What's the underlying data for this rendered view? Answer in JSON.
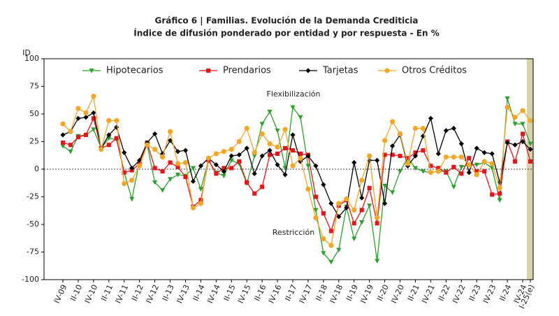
{
  "chart_data": {
    "type": "line",
    "title": "Gráfico 6 | Familias. Evolución de la Demanda Crediticia",
    "subtitle": "Índice de difusión ponderado por entidad y por respuesta - En %",
    "y_label": "ID",
    "annotations": [
      "Flexibilización",
      "Restricción"
    ],
    "categories": [
      "IV-09",
      null,
      "II-10",
      null,
      "IV-10",
      null,
      "II-11",
      null,
      "IV-11",
      null,
      "II-12",
      null,
      "IV-12",
      null,
      "II-13",
      null,
      "IV-13",
      null,
      "II-14",
      null,
      "IV-14",
      null,
      "II-15",
      null,
      "IV-15",
      null,
      "II-16",
      null,
      "IV-16",
      null,
      "II-17",
      null,
      "IV-17",
      null,
      "II-18",
      null,
      "IV-18",
      null,
      "II-19",
      null,
      "IV-19",
      null,
      "II-20",
      null,
      "IV-20",
      null,
      "II-21",
      null,
      "IV-21",
      null,
      "II-22",
      null,
      "IV-22",
      null,
      "II-23",
      null,
      "IV-23",
      null,
      "II-24",
      null,
      "IV-24",
      "I-25(e)"
    ],
    "series": [
      {
        "name": "Hipotecarios",
        "color": "#2ca02c",
        "marker": "triangle-down",
        "values": [
          21,
          16,
          30,
          31,
          36,
          19,
          28,
          27,
          -3,
          -27,
          7,
          22,
          -12,
          -19,
          -9,
          -5,
          -6,
          1,
          -18,
          8,
          -3,
          -6,
          8,
          5,
          -13,
          12,
          41,
          52,
          35,
          1,
          56,
          47,
          3,
          -37,
          -76,
          -84,
          -73,
          -34,
          -63,
          -48,
          -33,
          -83,
          -15,
          -21,
          -2,
          10,
          1,
          -2,
          -3,
          -2,
          -2,
          -16,
          2,
          4,
          4,
          6,
          1,
          -28,
          64,
          41,
          41,
          23
        ]
      },
      {
        "name": "Prendarios",
        "color": "#e8141a",
        "marker": "square",
        "values": [
          24,
          22,
          29,
          31,
          46,
          19,
          22,
          28,
          -3,
          -1,
          5,
          24,
          1,
          -2,
          6,
          2,
          -7,
          -34,
          -28,
          8,
          -4,
          1,
          1,
          7,
          -12,
          -22,
          -16,
          13,
          14,
          19,
          17,
          14,
          13,
          -25,
          -40,
          -56,
          -33,
          -28,
          -49,
          -37,
          -17,
          -49,
          13,
          13,
          12,
          10,
          15,
          17,
          3,
          1,
          -3,
          2,
          -4,
          10,
          -2,
          -2,
          -23,
          -22,
          25,
          7,
          32,
          7
        ]
      },
      {
        "name": "Tarjetas",
        "color": "#000000",
        "marker": "diamond",
        "values": [
          31,
          34,
          46,
          47,
          51,
          19,
          31,
          38,
          15,
          1,
          8,
          24,
          32,
          14,
          26,
          16,
          17,
          -11,
          3,
          10,
          4,
          -2,
          12,
          13,
          19,
          -4,
          12,
          17,
          4,
          -5,
          31,
          7,
          12,
          3,
          -14,
          -31,
          -43,
          -35,
          6,
          -26,
          8,
          8,
          -31,
          21,
          31,
          3,
          12,
          30,
          46,
          14,
          35,
          37,
          23,
          -3,
          19,
          15,
          14,
          -12,
          24,
          22,
          25,
          18
        ]
      },
      {
        "name": "Otros Créditos",
        "color": "#f5a623",
        "marker": "circle",
        "values": [
          41,
          34,
          55,
          51,
          66,
          18,
          44,
          44,
          -13,
          -10,
          3,
          22,
          18,
          11,
          34,
          5,
          6,
          -35,
          -31,
          10,
          14,
          16,
          18,
          25,
          37,
          15,
          32,
          23,
          20,
          36,
          3,
          10,
          -18,
          -44,
          -63,
          -69,
          -31,
          -27,
          -37,
          -10,
          12,
          -44,
          26,
          43,
          32,
          5,
          37,
          37,
          -3,
          -2,
          11,
          11,
          11,
          4,
          -5,
          7,
          5,
          -17,
          56,
          47,
          53,
          44
        ]
      }
    ],
    "ylim": [
      -100,
      100
    ],
    "yticks": [
      -100,
      -75,
      -50,
      -25,
      0,
      25,
      50,
      75,
      100
    ],
    "legend": "upper center"
  }
}
